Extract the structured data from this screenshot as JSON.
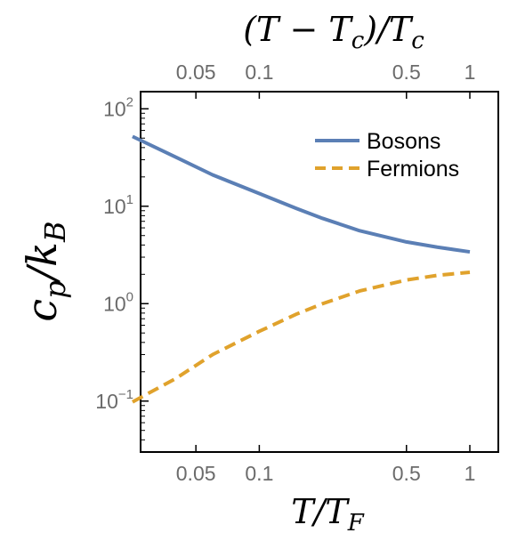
{
  "chart_data": {
    "type": "line",
    "xscale": "log",
    "yscale": "log",
    "xlim": [
      0.02,
      1.0
    ],
    "ylim": [
      0.03,
      150
    ],
    "grid": false,
    "legend_position": "top-right",
    "x_ticks": [
      {
        "value": 0.05,
        "label": "0.05"
      },
      {
        "value": 0.1,
        "label": "0.1"
      },
      {
        "value": 0.5,
        "label": "0.5"
      },
      {
        "value": 1,
        "label": "1"
      }
    ],
    "top_ticks": [
      {
        "value": 0.05,
        "label": "0.05"
      },
      {
        "value": 0.1,
        "label": "0.1"
      },
      {
        "value": 0.5,
        "label": "0.5"
      },
      {
        "value": 1,
        "label": "1"
      }
    ],
    "y_ticks": [
      {
        "value": 0.1,
        "base": "10",
        "exp": "−1"
      },
      {
        "value": 1,
        "base": "10",
        "exp": "0"
      },
      {
        "value": 10,
        "base": "10",
        "exp": "1"
      },
      {
        "value": 100,
        "base": "10",
        "exp": "2"
      }
    ],
    "xlabel": {
      "main": "T/T",
      "sub": "F"
    },
    "ylabel": {
      "main": "c",
      "sub": "p",
      "mid": "/k",
      "sub2": "B"
    },
    "top_label": "(T − T<sub>c</sub>)/T<sub>c</sub>",
    "series": [
      {
        "name": "Bosons",
        "color": "#5b7fb5",
        "dash": "solid",
        "x": [
          0.025,
          0.04,
          0.06,
          0.1,
          0.15,
          0.2,
          0.3,
          0.5,
          0.7,
          1.0
        ],
        "y": [
          52,
          32,
          21,
          13.5,
          9.5,
          7.5,
          5.6,
          4.3,
          3.8,
          3.4
        ]
      },
      {
        "name": "Fermions",
        "color": "#e0a22c",
        "dash": "dashed",
        "x": [
          0.025,
          0.04,
          0.06,
          0.1,
          0.15,
          0.2,
          0.3,
          0.5,
          0.7,
          1.0
        ],
        "y": [
          0.098,
          0.17,
          0.3,
          0.52,
          0.78,
          1.0,
          1.35,
          1.75,
          1.95,
          2.1
        ]
      }
    ]
  }
}
